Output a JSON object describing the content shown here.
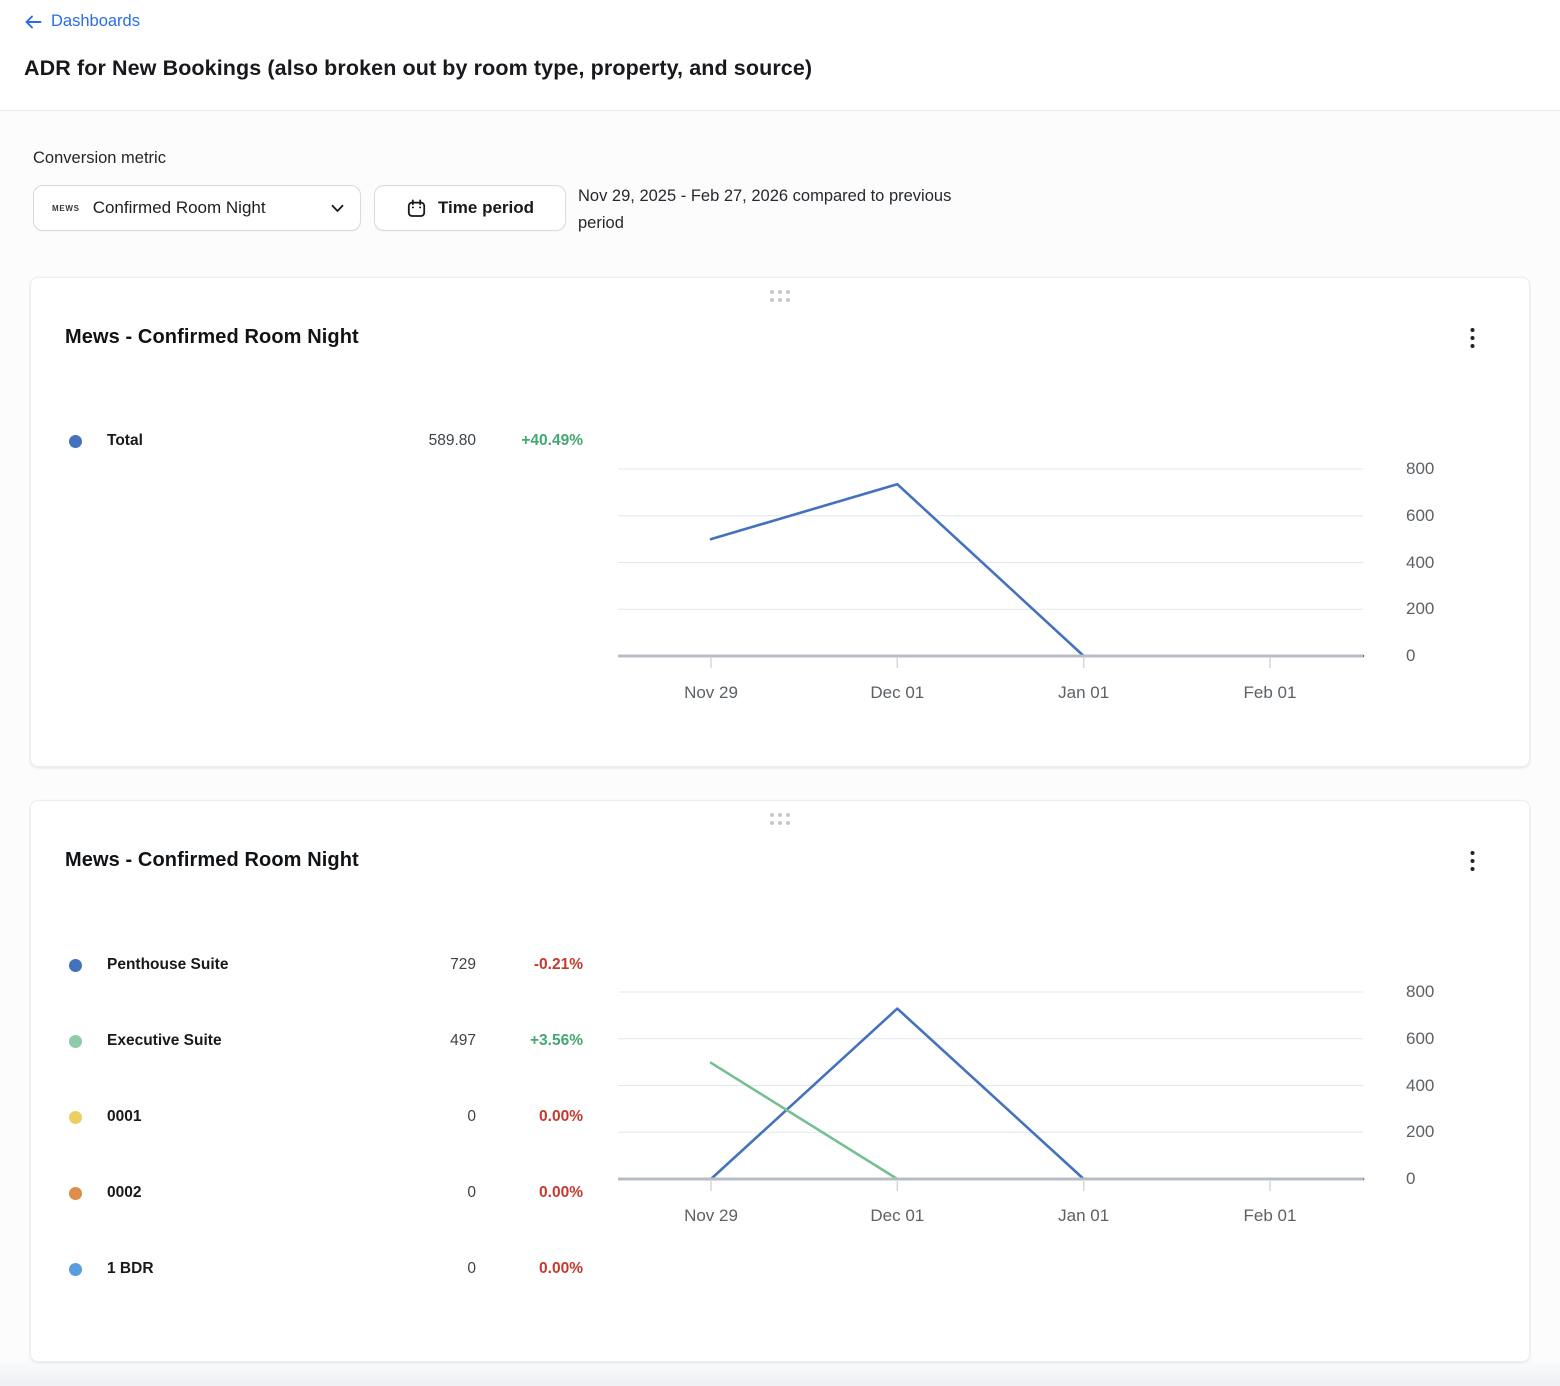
{
  "header": {
    "back_label": "Dashboards",
    "title": "ADR for New Bookings (also broken out by room type, property, and source)"
  },
  "controls": {
    "metric_label": "Conversion metric",
    "metric_logo": "MEWS",
    "metric_value": "Confirmed Room Night",
    "time_period_label": "Time period",
    "period_summary": "Nov 29, 2025 - Feb 27, 2026 compared to previous period"
  },
  "cards": [
    {
      "title": "Mews - Confirmed Room Night",
      "legend": [
        {
          "label": "Total",
          "value": "589.80",
          "delta": "+40.49%",
          "trend": "up",
          "color": "#4472bd"
        }
      ]
    },
    {
      "title": "Mews - Confirmed Room Night",
      "legend": [
        {
          "label": "Penthouse Suite",
          "value": "729",
          "delta": "-0.21%",
          "trend": "down",
          "color": "#4472bd"
        },
        {
          "label": "Executive Suite",
          "value": "497",
          "delta": "+3.56%",
          "trend": "up",
          "color": "#8ecbaa"
        },
        {
          "label": "0001",
          "value": "0",
          "delta": "0.00%",
          "trend": "down",
          "color": "#ecce63"
        },
        {
          "label": "0002",
          "value": "0",
          "delta": "0.00%",
          "trend": "down",
          "color": "#dd8e4a"
        },
        {
          "label": "1 BDR",
          "value": "0",
          "delta": "0.00%",
          "trend": "down",
          "color": "#5b9ce0"
        }
      ]
    }
  ],
  "chart_data": [
    {
      "type": "line",
      "title": "Mews - Confirmed Room Night",
      "categories": [
        "Nov 29",
        "Dec 01",
        "Jan 01",
        "Feb 01"
      ],
      "series": [
        {
          "name": "Total",
          "values": [
            500,
            735,
            0,
            0
          ],
          "color": "#4472bd"
        }
      ],
      "ylim": [
        0,
        800
      ],
      "yticks": [
        0,
        200,
        400,
        600,
        800
      ],
      "grid": true,
      "legend_position": "left",
      "x_range_note": "Nov 29, 2025 - Feb 27, 2026",
      "summary": {
        "value": 589.8,
        "delta_pct": 40.49
      }
    },
    {
      "type": "line",
      "title": "Mews - Confirmed Room Night",
      "categories": [
        "Nov 29",
        "Dec 01",
        "Jan 01",
        "Feb 01"
      ],
      "series": [
        {
          "name": "Penthouse Suite",
          "values": [
            0,
            729,
            0,
            0
          ],
          "color": "#4472bd"
        },
        {
          "name": "Executive Suite",
          "values": [
            497,
            0,
            0,
            0
          ],
          "color": "#74bf94"
        },
        {
          "name": "0001",
          "values": [
            0,
            0,
            0,
            0
          ],
          "color": "#ecce63"
        },
        {
          "name": "0002",
          "values": [
            0,
            0,
            0,
            0
          ],
          "color": "#dd8e4a"
        },
        {
          "name": "1 BDR",
          "values": [
            0,
            0,
            0,
            0
          ],
          "color": "#5b9ce0"
        }
      ],
      "ylim": [
        0,
        800
      ],
      "yticks": [
        0,
        200,
        400,
        600,
        800
      ],
      "grid": true,
      "legend_position": "left",
      "x_range_note": "Nov 29, 2025 - Feb 27, 2026"
    }
  ],
  "colors": {
    "link_blue": "#2a6ce8",
    "delta_up_green": "#43a871",
    "delta_down_red": "#c63a2e",
    "axis_line": "#b7bdc5",
    "gridline": "#e4e7eb",
    "axis_tick": "#d3d7dc",
    "axis_text": "#5c6166"
  }
}
